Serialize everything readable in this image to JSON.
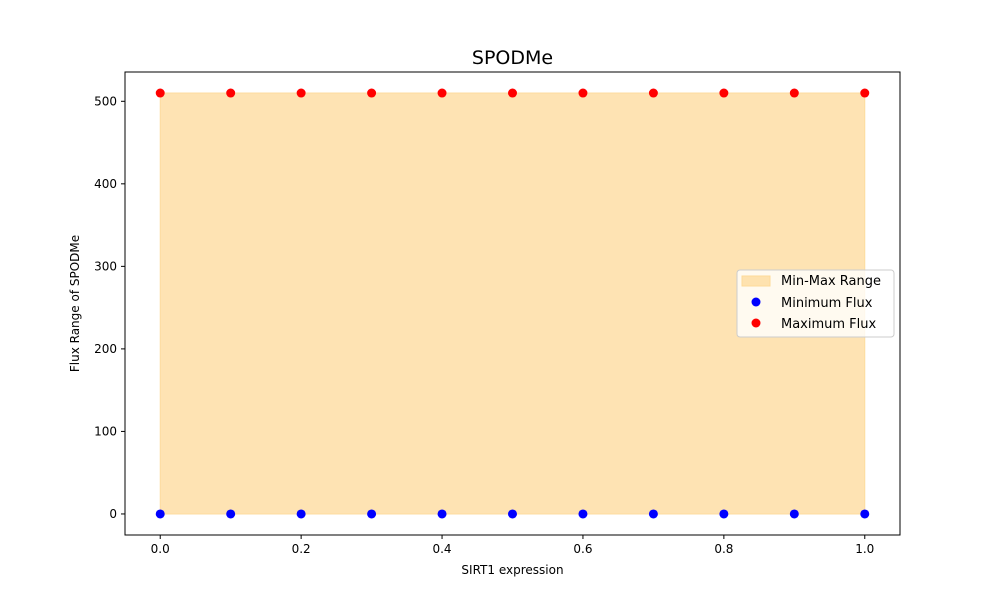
{
  "chart_data": {
    "type": "scatter",
    "title": "SPODMe",
    "xlabel": "SIRT1 expression",
    "ylabel": "Flux Range of SPODMe",
    "x": [
      0.0,
      0.1,
      0.2,
      0.3,
      0.4,
      0.5,
      0.6,
      0.7,
      0.8,
      0.9,
      1.0
    ],
    "xlim": [
      -0.05,
      1.05
    ],
    "ylim": [
      -25.5,
      535.5
    ],
    "xticks": [
      "0.0",
      "0.2",
      "0.4",
      "0.6",
      "0.8",
      "1.0"
    ],
    "yticks": [
      "0",
      "100",
      "200",
      "300",
      "400",
      "500"
    ],
    "grid": false,
    "legend_position": "center-right",
    "fill": {
      "name": "Min-Max Range",
      "color": "#fdd999",
      "alpha": 0.75
    },
    "series": [
      {
        "name": "Minimum Flux",
        "color": "#0000ff",
        "values": [
          0,
          0,
          0,
          0,
          0,
          0,
          0,
          0,
          0,
          0,
          0
        ]
      },
      {
        "name": "Maximum Flux",
        "color": "#ff0000",
        "values": [
          510,
          510,
          510,
          510,
          510,
          510,
          510,
          510,
          510,
          510,
          510
        ]
      }
    ]
  }
}
